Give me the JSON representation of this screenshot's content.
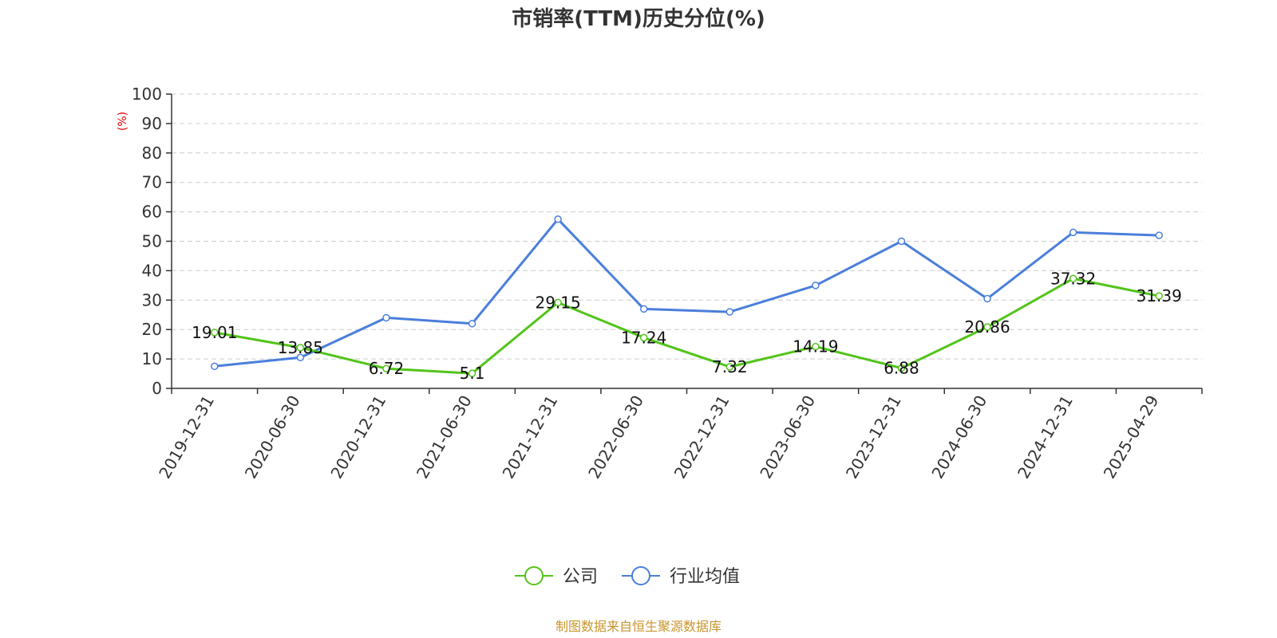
{
  "chart_data": {
    "type": "line",
    "title": "市销率(TTM)历史分位(%)",
    "ylabel": "(%)",
    "xlabel": "",
    "ylim": [
      0,
      100
    ],
    "yticks": [
      0,
      10,
      20,
      30,
      40,
      50,
      60,
      70,
      80,
      90,
      100
    ],
    "grid": true,
    "categories": [
      "2019-12-31",
      "2020-06-30",
      "2020-12-31",
      "2021-06-30",
      "2021-12-31",
      "2022-06-30",
      "2022-12-31",
      "2023-06-30",
      "2023-12-31",
      "2024-06-30",
      "2024-12-31",
      "2025-04-29"
    ],
    "series": [
      {
        "name": "公司",
        "color": "#52c41a",
        "show_labels": true,
        "values": [
          19.01,
          13.85,
          6.72,
          5.1,
          29.15,
          17.24,
          7.32,
          14.19,
          6.88,
          20.86,
          37.32,
          31.39
        ]
      },
      {
        "name": "行业均值",
        "color": "#4a7fdb",
        "show_labels": false,
        "values": [
          7.5,
          10.5,
          24.0,
          22.0,
          57.5,
          27.0,
          26.0,
          35.0,
          50.0,
          30.5,
          53.0,
          52.0
        ]
      }
    ],
    "legend_position": "bottom-center",
    "label_color": "#e60000",
    "source_color": "#c8962e",
    "source": "制图数据来自恒生聚源数据库"
  }
}
